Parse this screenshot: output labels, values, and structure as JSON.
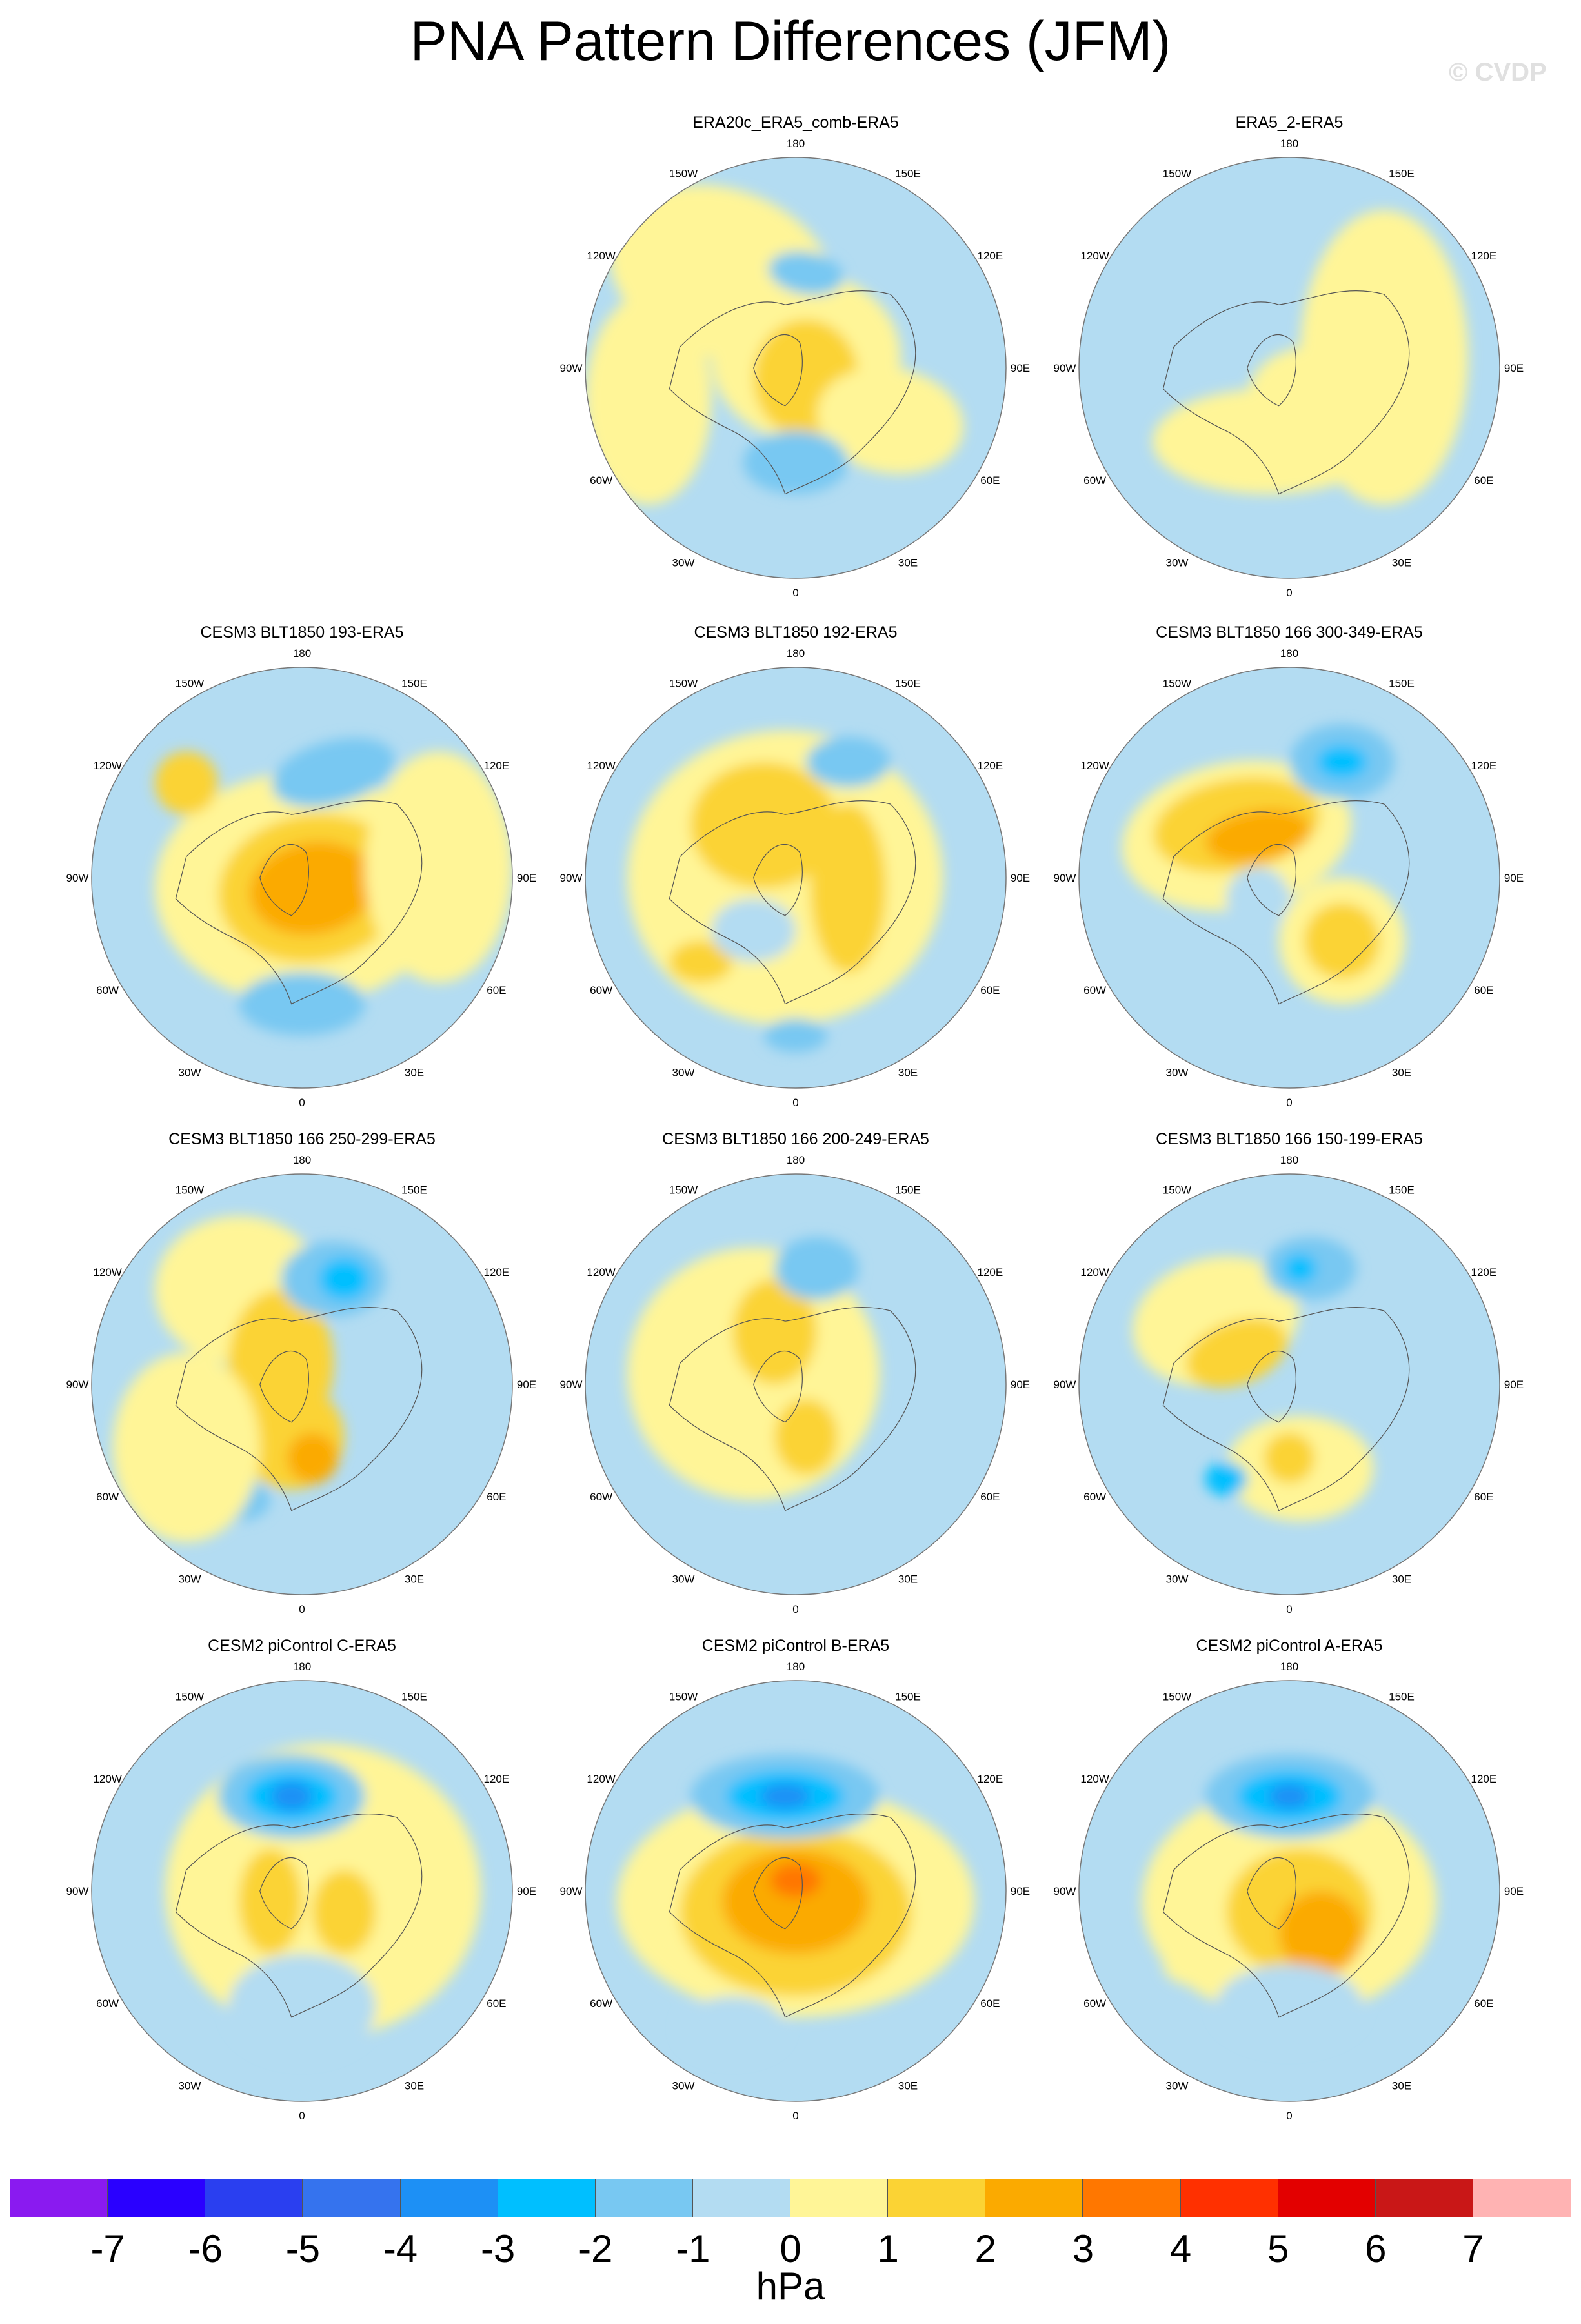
{
  "title": "PNA Pattern Differences (JFM)",
  "watermark": "© CVDP",
  "longitude_labels": [
    "180",
    "150E",
    "120E",
    "90E",
    "60E",
    "30E",
    "0",
    "30W",
    "60W",
    "90W",
    "120W",
    "150W"
  ],
  "chart_data": {
    "type": "polar-contour-map-panels",
    "projection": "north polar stereographic",
    "variable": "PNA pattern difference",
    "season": "JFM",
    "units": "hPa",
    "panels": [
      {
        "title": "ERA20c_ERA5_comb-ERA5",
        "row": 0,
        "col": 1,
        "max_positive": 2,
        "max_negative": -3
      },
      {
        "title": "ERA5_2-ERA5",
        "row": 0,
        "col": 2,
        "max_positive": 1,
        "max_negative": -1
      },
      {
        "title": "CESM3 BLT1850 193-ERA5",
        "row": 1,
        "col": 0,
        "max_positive": 4,
        "max_negative": -2
      },
      {
        "title": "CESM3 BLT1850 192-ERA5",
        "row": 1,
        "col": 1,
        "max_positive": 3,
        "max_negative": -2
      },
      {
        "title": "CESM3 BLT1850 166 300-349-ERA5",
        "row": 1,
        "col": 2,
        "max_positive": 4,
        "max_negative": -3
      },
      {
        "title": "CESM3 BLT1850 166 250-299-ERA5",
        "row": 2,
        "col": 0,
        "max_positive": 3,
        "max_negative": -3
      },
      {
        "title": "CESM3 BLT1850 166 200-249-ERA5",
        "row": 2,
        "col": 1,
        "max_positive": 3,
        "max_negative": -2
      },
      {
        "title": "CESM3 BLT1850 166 150-199-ERA5",
        "row": 2,
        "col": 2,
        "max_positive": 3,
        "max_negative": -3
      },
      {
        "title": "CESM2 piControl C-ERA5",
        "row": 3,
        "col": 0,
        "max_positive": 2,
        "max_negative": -4
      },
      {
        "title": "CESM2 piControl B-ERA5",
        "row": 3,
        "col": 1,
        "max_positive": 4,
        "max_negative": -4
      },
      {
        "title": "CESM2 piControl A-ERA5",
        "row": 3,
        "col": 2,
        "max_positive": 3,
        "max_negative": -4
      }
    ],
    "colorbar": {
      "levels": [
        "-7",
        "-6",
        "-5",
        "-4",
        "-3",
        "-2",
        "-1",
        "0",
        "1",
        "2",
        "3",
        "4",
        "5",
        "6",
        "7"
      ],
      "colors": [
        "#8a1af0",
        "#2a00ff",
        "#2a3ff0",
        "#3573ee",
        "#1d90f5",
        "#00bfff",
        "#78c8f2",
        "#b3dcf2",
        "#fff597",
        "#fbd334",
        "#fbaa00",
        "#ff7700",
        "#ff3000",
        "#e30000",
        "#c91717",
        "#ffb3b3"
      ],
      "units": "hPa"
    }
  }
}
